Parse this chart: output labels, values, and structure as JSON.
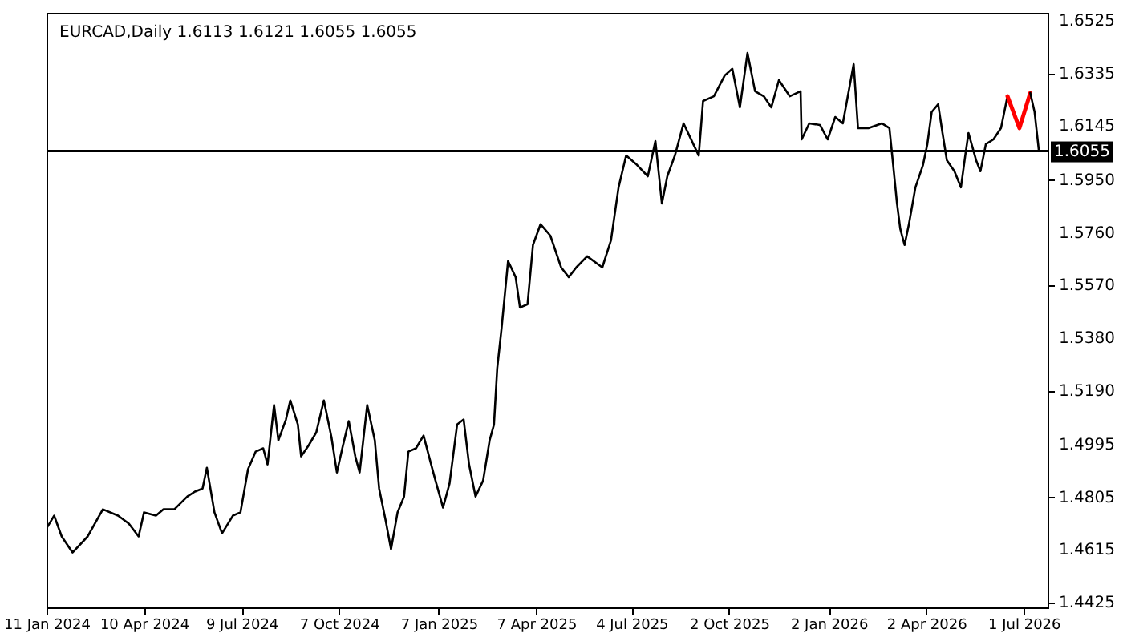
{
  "chart_data": {
    "type": "line",
    "title": "EURCAD,Daily  1.6113 1.6121 1.6055 1.6055",
    "xlim": [
      "2024-01-11",
      "2026-07-23"
    ],
    "ylim": [
      1.4408,
      1.6554
    ],
    "xticks": [
      {
        "value": "2024-01-11",
        "label": "11 Jan 2024"
      },
      {
        "value": "2024-04-10",
        "label": "10 Apr 2024"
      },
      {
        "value": "2024-07-09",
        "label": "9 Jul 2024"
      },
      {
        "value": "2024-10-07",
        "label": "7 Oct 2024"
      },
      {
        "value": "2025-01-07",
        "label": "7 Jan 2025"
      },
      {
        "value": "2025-04-07",
        "label": "7 Apr 2025"
      },
      {
        "value": "2025-07-04",
        "label": "4 Jul 2025"
      },
      {
        "value": "2025-10-02",
        "label": "2 Oct 2025"
      },
      {
        "value": "2026-01-02",
        "label": "2 Jan 2026"
      },
      {
        "value": "2026-04-02",
        "label": "2 Apr 2026"
      },
      {
        "value": "2026-07-01",
        "label": "1 Jul 2026"
      }
    ],
    "yticks": [
      1.6525,
      1.6335,
      1.6145,
      {
        "value": 1.595,
        "label": "1.5950"
      },
      {
        "value": 1.576,
        "label": "1.5760"
      },
      {
        "value": 1.557,
        "label": "1.5570"
      },
      {
        "value": 1.538,
        "label": "1.5380"
      },
      {
        "value": 1.519,
        "label": "1.5190"
      },
      1.4995,
      1.4805,
      1.4615,
      1.4425
    ],
    "ref_lines": [
      {
        "axis": "y",
        "value": 1.6055,
        "label": "1.6055"
      }
    ],
    "series": [
      {
        "color": "#000000",
        "x": [
          "2024-01-11",
          "2024-01-18",
          "2024-01-25",
          "2024-02-04",
          "2024-02-18",
          "2024-03-03",
          "2024-03-17",
          "2024-03-27",
          "2024-04-05",
          "2024-04-10",
          "2024-04-21",
          "2024-04-28",
          "2024-05-08",
          "2024-05-20",
          "2024-05-27",
          "2024-06-03",
          "2024-06-07",
          "2024-06-14",
          "2024-06-21",
          "2024-07-01",
          "2024-07-08",
          "2024-07-15",
          "2024-07-22",
          "2024-07-29",
          "2024-08-02",
          "2024-08-08",
          "2024-08-12",
          "2024-08-19",
          "2024-08-23",
          "2024-08-30",
          "2024-09-02",
          "2024-09-09",
          "2024-09-16",
          "2024-09-23",
          "2024-09-30",
          "2024-10-05",
          "2024-10-10",
          "2024-10-16",
          "2024-10-22",
          "2024-10-26",
          "2024-11-02",
          "2024-11-09",
          "2024-11-13",
          "2024-11-19",
          "2024-11-24",
          "2024-11-30",
          "2024-12-06",
          "2024-12-10",
          "2024-12-17",
          "2024-12-24",
          "2024-12-31",
          "2025-01-04",
          "2025-01-11",
          "2025-01-17",
          "2025-01-24",
          "2025-01-30",
          "2025-02-04",
          "2025-02-10",
          "2025-02-17",
          "2025-02-23",
          "2025-02-27",
          "2025-03-02",
          "2025-03-06",
          "2025-03-12",
          "2025-03-19",
          "2025-03-23",
          "2025-03-30",
          "2025-04-04",
          "2025-04-11",
          "2025-04-20",
          "2025-04-30",
          "2025-05-07",
          "2025-05-14",
          "2025-05-24",
          "2025-06-07",
          "2025-06-15",
          "2025-06-22",
          "2025-06-29",
          "2025-07-09",
          "2025-07-19",
          "2025-07-26",
          "2025-08-01",
          "2025-08-06",
          "2025-08-13",
          "2025-08-21",
          "2025-08-30",
          "2025-09-04",
          "2025-09-08",
          "2025-09-18",
          "2025-09-28",
          "2025-10-05",
          "2025-10-12",
          "2025-10-19",
          "2025-10-26",
          "2025-11-03",
          "2025-11-10",
          "2025-11-17",
          "2025-11-27",
          "2025-12-07",
          "2025-12-08",
          "2025-12-15",
          "2025-12-25",
          "2026-01-01",
          "2026-01-08",
          "2026-01-15",
          "2026-01-25",
          "2026-01-29",
          "2026-02-08",
          "2026-02-20",
          "2026-02-27",
          "2026-03-02",
          "2026-03-06",
          "2026-03-09",
          "2026-03-13",
          "2026-03-17",
          "2026-03-23",
          "2026-03-30",
          "2026-04-03",
          "2026-04-07",
          "2026-04-13",
          "2026-04-17",
          "2026-04-21",
          "2026-04-28",
          "2026-05-04",
          "2026-05-08",
          "2026-05-11",
          "2026-05-18",
          "2026-05-22",
          "2026-05-27",
          "2026-06-03",
          "2026-06-10",
          "2026-06-16"
        ],
        "values": [
          1.4693,
          1.4739,
          1.4664,
          1.4606,
          1.4664,
          1.4762,
          1.4739,
          1.471,
          1.4664,
          1.4751,
          1.4739,
          1.4762,
          1.4762,
          1.4808,
          1.4826,
          1.4837,
          1.4912,
          1.4751,
          1.4675,
          1.4739,
          1.4751,
          1.4907,
          1.497,
          1.4982,
          1.4924,
          1.5138,
          1.5011,
          1.5086,
          1.5155,
          1.5068,
          1.4953,
          1.4993,
          1.504,
          1.5155,
          1.5022,
          1.4895,
          1.4982,
          1.508,
          1.4953,
          1.4895,
          1.5138,
          1.5011,
          1.4837,
          1.4722,
          1.4618,
          1.4751,
          1.4808,
          1.497,
          1.4982,
          1.5028,
          1.4924,
          1.4866,
          1.4768,
          1.4855,
          1.5068,
          1.5086,
          1.4924,
          1.4808,
          1.4866,
          1.5011,
          1.5068,
          1.5271,
          1.5415,
          1.5658,
          1.56,
          1.549,
          1.5502,
          1.5716,
          1.5791,
          1.575,
          1.5635,
          1.56,
          1.5635,
          1.5675,
          1.5635,
          1.5733,
          1.5924,
          1.6039,
          1.6005,
          1.5964,
          1.6091,
          1.5866,
          1.5964,
          1.6039,
          1.6155,
          1.608,
          1.6039,
          1.6236,
          1.6253,
          1.6328,
          1.6352,
          1.6213,
          1.6409,
          1.6271,
          1.6253,
          1.6213,
          1.6311,
          1.6253,
          1.6271,
          1.6097,
          1.6155,
          1.6149,
          1.6097,
          1.6178,
          1.6155,
          1.6369,
          1.6138,
          1.6138,
          1.6155,
          1.6138,
          1.6022,
          1.5866,
          1.5774,
          1.5716,
          1.5791,
          1.5924,
          1.6005,
          1.608,
          1.6196,
          1.6224,
          1.612,
          1.6022,
          1.5982,
          1.5924,
          1.6039,
          1.612,
          1.6022,
          1.5982,
          1.608,
          1.6097,
          1.6138,
          1.6253
        ]
      },
      {
        "color": "#ff0000",
        "x": [
          "2026-06-16",
          "2026-06-27",
          "2026-07-07"
        ],
        "values": [
          1.6253,
          1.6138,
          1.6265
        ]
      },
      {
        "color": "#000000",
        "x": [
          "2026-07-07",
          "2026-07-11",
          "2026-07-15"
        ],
        "values": [
          1.6265,
          1.6196,
          1.6055
        ]
      }
    ]
  }
}
